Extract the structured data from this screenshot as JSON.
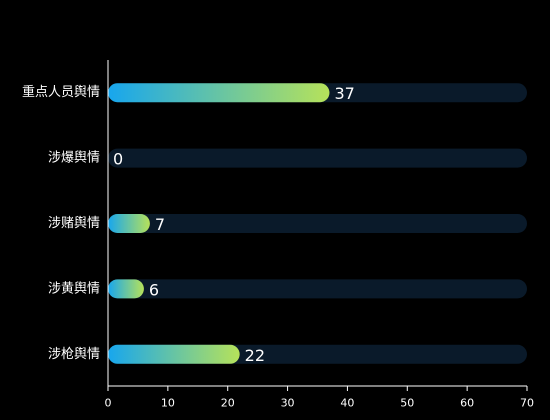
{
  "chart_data": {
    "type": "bar",
    "orientation": "horizontal",
    "categories": [
      "重点人员舆情",
      "涉爆舆情",
      "涉赌舆情",
      "涉黄舆情",
      "涉枪舆情"
    ],
    "values": [
      37,
      0,
      7,
      6,
      22
    ],
    "xlim": [
      0,
      70
    ],
    "xticks": [
      0,
      10,
      20,
      30,
      40,
      50,
      60,
      70
    ],
    "title": "",
    "xlabel": "",
    "ylabel": "",
    "grid": false,
    "legend": "none",
    "colors": {
      "background": "#000000",
      "track": "#0a1a2a",
      "bar_gradient_start": "#17a6ee",
      "bar_gradient_end": "#b6e25a",
      "text": "#ffffff",
      "axis": "#ffffff"
    }
  }
}
